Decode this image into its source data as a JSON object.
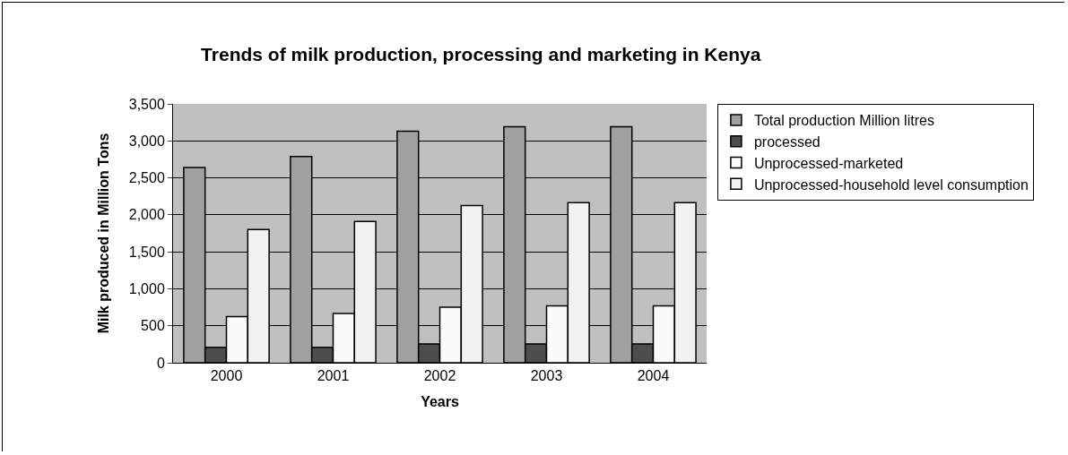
{
  "chart_data": {
    "type": "bar",
    "title": "Trends of milk production, processing and marketing in Kenya",
    "xlabel": "Years",
    "ylabel": "Milk produced in Million Tons",
    "categories": [
      "2000",
      "2001",
      "2002",
      "2003",
      "2004"
    ],
    "series": [
      {
        "name": "Total production Million litres",
        "color": "#a0a0a0",
        "values": [
          2640,
          2790,
          3130,
          3190,
          3190
        ]
      },
      {
        "name": "processed",
        "color": "#4d4d4d",
        "values": [
          210,
          210,
          255,
          255,
          255
        ]
      },
      {
        "name": "Unprocessed-marketed",
        "color": "#fbfbfb",
        "values": [
          625,
          665,
          750,
          770,
          770
        ]
      },
      {
        "name": "Unprocessed-household level consumption",
        "color": "#f2f2f2",
        "values": [
          1800,
          1910,
          2125,
          2165,
          2165
        ]
      }
    ],
    "ylim": [
      0,
      3500
    ],
    "yticks": [
      0,
      {
        "value": 500,
        "label": "500"
      },
      {
        "value": 1000,
        "label": "1,000"
      },
      {
        "value": 1500,
        "label": "1,500"
      },
      {
        "value": 2000,
        "label": "2,000"
      },
      {
        "value": 2500,
        "label": "2,500"
      },
      {
        "value": 3000,
        "label": "3,000"
      },
      {
        "value": 3500,
        "label": "3,500"
      }
    ],
    "grid": "y",
    "legend": "right"
  }
}
